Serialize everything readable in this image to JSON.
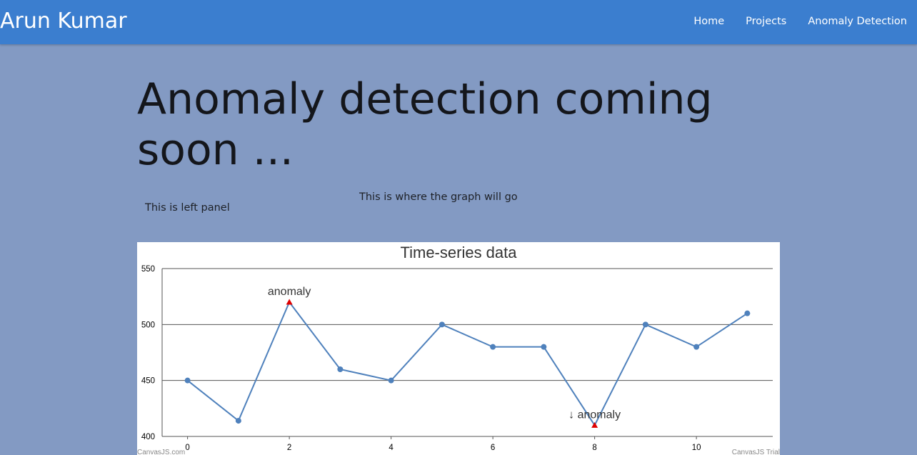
{
  "navbar": {
    "brand": "Arun Kumar",
    "links": [
      "Home",
      "Projects",
      "Anomaly Detection"
    ],
    "color": "#3b7ecf"
  },
  "page": {
    "heading": "Anomaly detection coming soon ...",
    "left_panel": "This is left panel",
    "graph_placeholder": "This is where the graph will go",
    "background": "#839ac3"
  },
  "chart_data": {
    "type": "line",
    "title": "Time-series data",
    "x": [
      0,
      1,
      2,
      3,
      4,
      5,
      6,
      7,
      8,
      9,
      10,
      11
    ],
    "values": [
      450,
      414,
      520,
      460,
      450,
      500,
      480,
      480,
      410,
      500,
      480,
      510
    ],
    "xticks": [
      "0",
      "2",
      "4",
      "6",
      "8",
      "10"
    ],
    "yticks": [
      "400",
      "450",
      "500",
      "550"
    ],
    "ylim": [
      400,
      550
    ],
    "xlim": [
      -0.5,
      11.5
    ],
    "grid": true,
    "line_color": "#4f81bc",
    "anomaly_color": "#e00000",
    "anomalies": [
      {
        "index": 2,
        "label": "anomaly",
        "marker": "triangle"
      },
      {
        "index": 8,
        "label": "↓ anomaly",
        "marker": "triangle"
      }
    ],
    "credits": {
      "left": "CanvasJS.com",
      "right": "CanvasJS Trial"
    }
  }
}
